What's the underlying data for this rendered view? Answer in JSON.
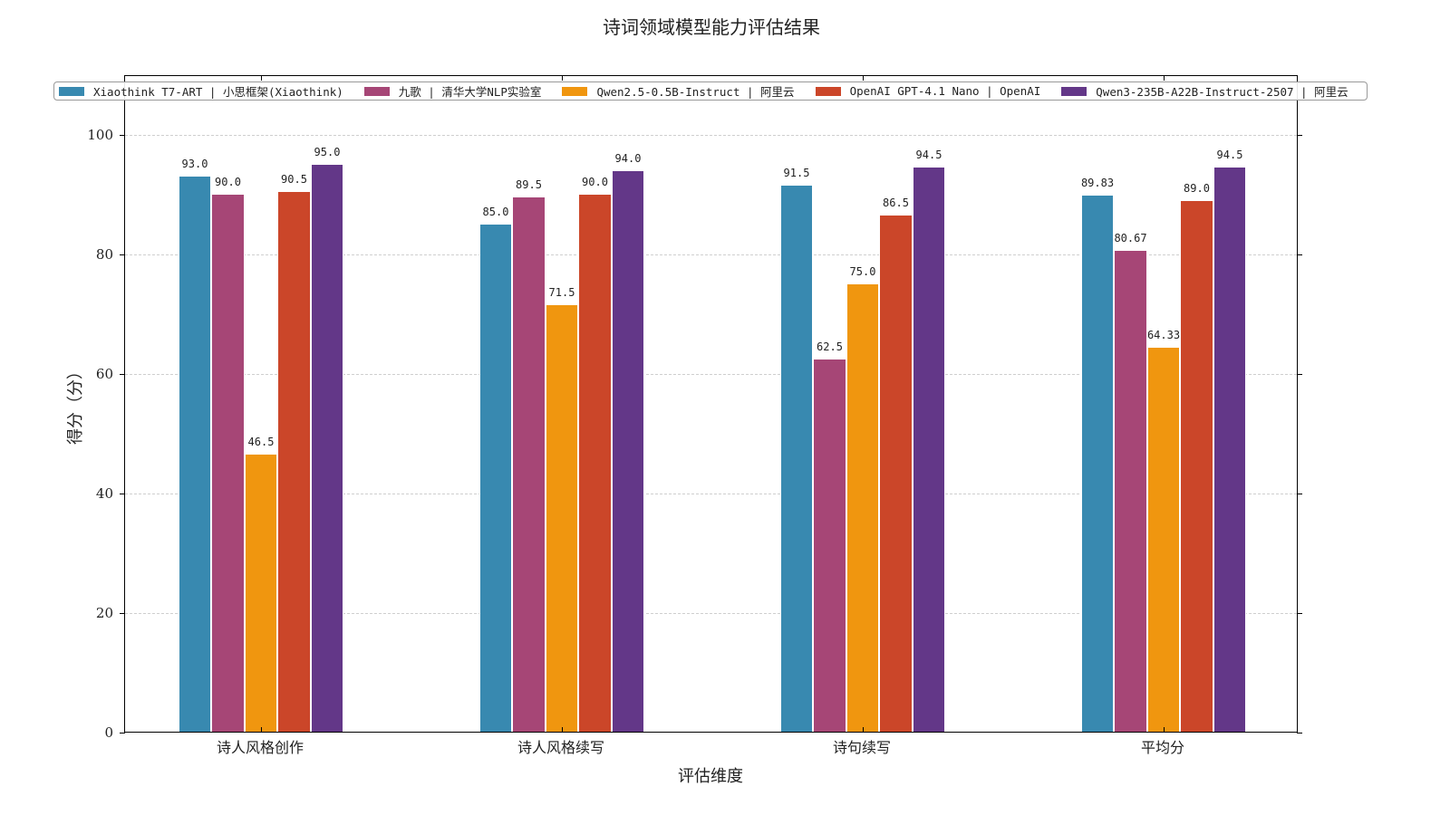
{
  "chart_data": {
    "type": "bar",
    "title": "诗词领域模型能力评估结果",
    "xlabel": "评估维度",
    "ylabel": "得分（分）",
    "ylim": [
      0,
      110
    ],
    "yticks": [
      0,
      20,
      40,
      60,
      80,
      100
    ],
    "grid": true,
    "legend_position": "top",
    "categories": [
      "诗人风格创作",
      "诗人风格续写",
      "诗句续写",
      "平均分"
    ],
    "series": [
      {
        "name": "Xiaothink T7-ART | 小思框架(Xiaothink)",
        "color": "#3889b0",
        "values": [
          93.0,
          85.0,
          91.5,
          89.83
        ],
        "labels": [
          "93.0",
          "85.0",
          "91.5",
          "89.83"
        ]
      },
      {
        "name": "九歌 | 清华大学NLP实验室",
        "color": "#a64676",
        "values": [
          90.0,
          89.5,
          62.5,
          80.67
        ],
        "labels": [
          "90.0",
          "89.5",
          "62.5",
          "80.67"
        ]
      },
      {
        "name": "Qwen2.5-0.5B-Instruct | 阿里云",
        "color": "#f0960f",
        "values": [
          46.5,
          71.5,
          75.0,
          64.33
        ],
        "labels": [
          "46.5",
          "71.5",
          "75.0",
          "64.33"
        ]
      },
      {
        "name": "OpenAI GPT-4.1 Nano | OpenAI",
        "color": "#cb4629",
        "values": [
          90.5,
          90.0,
          86.5,
          89.0
        ],
        "labels": [
          "90.5",
          "90.0",
          "86.5",
          "89.0"
        ]
      },
      {
        "name": "Qwen3-235B-A22B-Instruct-2507 | 阿里云",
        "color": "#633788",
        "values": [
          95.0,
          94.0,
          94.5,
          94.5
        ],
        "labels": [
          "95.0",
          "94.0",
          "94.5",
          "94.5"
        ]
      }
    ]
  }
}
